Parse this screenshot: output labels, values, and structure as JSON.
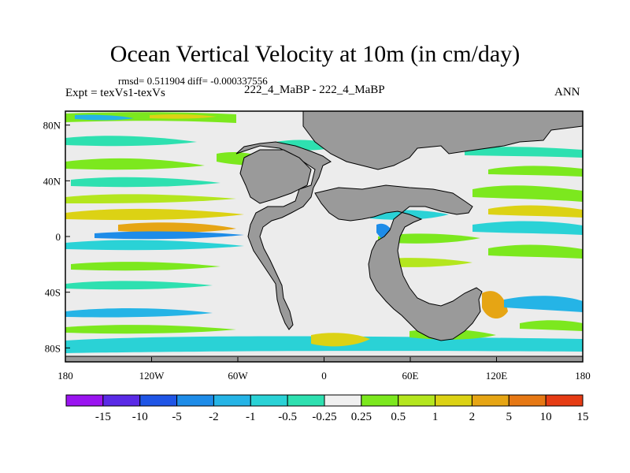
{
  "title": "Ocean Vertical Velocity at 10m (in cm/day)",
  "stats": "rmsd= 0.511904  diff= -0.000337556",
  "experiment": "Expt = texVs1-texVs",
  "case": "222_4_MaBP - 222_4_MaBP",
  "season": "ANN",
  "colors": {
    "land": "#9a9a9a",
    "ocean_background": "#ececec"
  },
  "map": {
    "lon_range": [
      -180,
      180
    ],
    "lat_range": [
      -90,
      90
    ],
    "x_ticks": [
      {
        "value": -180,
        "label": "180"
      },
      {
        "value": -120,
        "label": "120W"
      },
      {
        "value": -60,
        "label": "60W"
      },
      {
        "value": 0,
        "label": "0"
      },
      {
        "value": 60,
        "label": "60E"
      },
      {
        "value": 120,
        "label": "120E"
      },
      {
        "value": 180,
        "label": "180"
      }
    ],
    "y_ticks": [
      {
        "value": 80,
        "label": "80N"
      },
      {
        "value": 40,
        "label": "40N"
      },
      {
        "value": 0,
        "label": "0"
      },
      {
        "value": -40,
        "label": "40S"
      },
      {
        "value": -80,
        "label": "80S"
      }
    ]
  },
  "colorbar": {
    "bins": [
      {
        "color": "#9a14f0"
      },
      {
        "color": "#5a2ae6"
      },
      {
        "color": "#1f55e6"
      },
      {
        "color": "#1e8ce8"
      },
      {
        "color": "#25b4e6"
      },
      {
        "color": "#2ad2d6"
      },
      {
        "color": "#2ee0b0"
      },
      {
        "color": "#f0f0f0"
      },
      {
        "color": "#7ce81e"
      },
      {
        "color": "#b4e61e"
      },
      {
        "color": "#dcd214"
      },
      {
        "color": "#e6a514"
      },
      {
        "color": "#e67814"
      },
      {
        "color": "#e63c14"
      }
    ],
    "labels": [
      "-15",
      "-10",
      "-5",
      "-2",
      "-1",
      "-0.5",
      "-0.25",
      "0.25",
      "0.5",
      "1",
      "2",
      "5",
      "10",
      "15"
    ]
  }
}
